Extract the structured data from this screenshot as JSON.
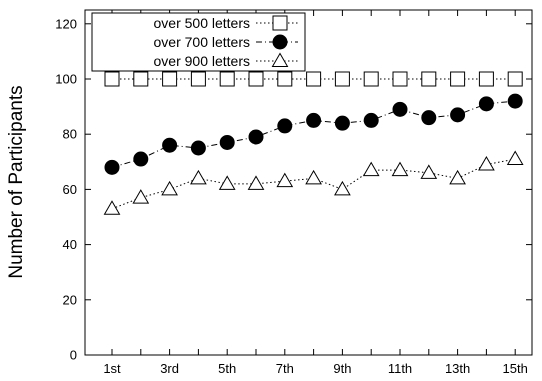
{
  "chart_data": {
    "type": "line",
    "title": "",
    "xlabel": "",
    "ylabel": "Number of Participants",
    "categories": [
      "1st",
      "2nd",
      "3rd",
      "4th",
      "5th",
      "6th",
      "7th",
      "8th",
      "9th",
      "10th",
      "11th",
      "12th",
      "13th",
      "14th",
      "15th"
    ],
    "xtick_labels": [
      "1st",
      "",
      "3rd",
      "",
      "5th",
      "",
      "7th",
      "",
      "9th",
      "",
      "11th",
      "",
      "13th",
      "",
      "15th"
    ],
    "yticks": [
      0,
      20,
      40,
      60,
      80,
      100,
      120
    ],
    "ylim": [
      0,
      125
    ],
    "grid": false,
    "legend_position": "top-left",
    "series": [
      {
        "name": "over 500 letters",
        "marker": "open-square",
        "line": "dotted",
        "values": [
          100,
          100,
          100,
          100,
          100,
          100,
          100,
          100,
          100,
          100,
          100,
          100,
          100,
          100,
          100
        ]
      },
      {
        "name": "over 700 letters",
        "marker": "filled-circle",
        "line": "dash-dot",
        "values": [
          68,
          71,
          76,
          75,
          77,
          79,
          83,
          85,
          84,
          85,
          89,
          86,
          87,
          91,
          92
        ]
      },
      {
        "name": "over 900 letters",
        "marker": "open-triangle",
        "line": "dotted",
        "values": [
          53,
          57,
          60,
          64,
          62,
          62,
          63,
          64,
          60,
          67,
          67,
          66,
          64,
          69,
          71
        ]
      }
    ]
  }
}
